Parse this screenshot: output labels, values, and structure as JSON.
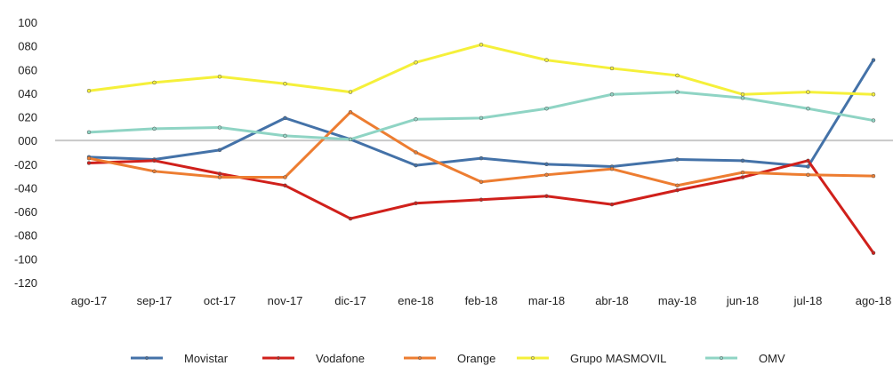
{
  "chart_data": {
    "type": "line",
    "title": "",
    "xlabel": "",
    "ylabel": "",
    "categories": [
      "ago-17",
      "sep-17",
      "oct-17",
      "nov-17",
      "dic-17",
      "ene-18",
      "feb-18",
      "mar-18",
      "abr-18",
      "may-18",
      "jun-18",
      "jul-18",
      "ago-18"
    ],
    "y_tick_labels": [
      "100",
      "080",
      "060",
      "040",
      "020",
      "000",
      "-020",
      "-040",
      "-060",
      "-080",
      "-100",
      "-120"
    ],
    "y_tick_values": [
      100,
      80,
      60,
      40,
      20,
      0,
      -20,
      -40,
      -60,
      -80,
      -100,
      -120
    ],
    "ylim": [
      -120,
      100
    ],
    "grid": false,
    "zero_line": true,
    "legend_position": "bottom",
    "series": [
      {
        "name": "Movistar",
        "color": "#4472a8",
        "values": [
          -14,
          -16,
          -8,
          19,
          1,
          -21,
          -15,
          -20,
          -22,
          -16,
          -17,
          -22,
          68
        ]
      },
      {
        "name": "Vodafone",
        "color": "#d0201b",
        "values": [
          -19,
          -17,
          -28,
          -38,
          -66,
          -53,
          -50,
          -47,
          -54,
          -42,
          -31,
          -17,
          -95
        ]
      },
      {
        "name": "Orange",
        "color": "#ed7d31",
        "values": [
          -15,
          -26,
          -31,
          -31,
          24,
          -10,
          -35,
          -29,
          -24,
          -38,
          -27,
          -29,
          -30
        ]
      },
      {
        "name": "Grupo MASMOVIL",
        "color": "#f5f03a",
        "values": [
          42,
          49,
          54,
          48,
          41,
          66,
          81,
          68,
          61,
          55,
          39,
          41,
          39
        ]
      },
      {
        "name": "OMV",
        "color": "#8fd4c4",
        "values": [
          7,
          10,
          11,
          4,
          1,
          18,
          19,
          27,
          39,
          41,
          36,
          27,
          17
        ]
      }
    ]
  }
}
